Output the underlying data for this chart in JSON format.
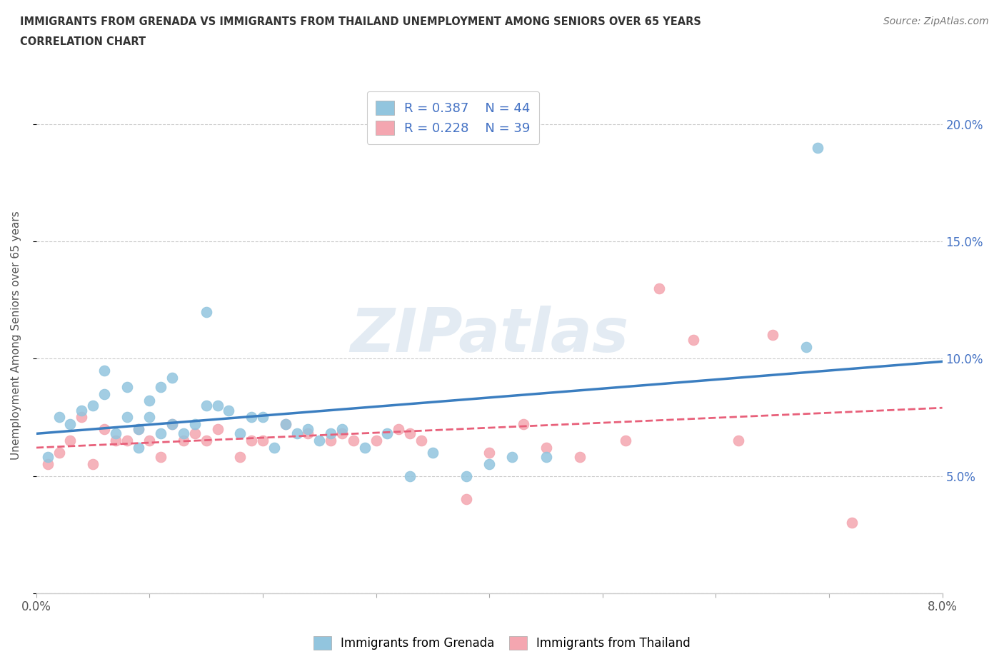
{
  "title_line1": "IMMIGRANTS FROM GRENADA VS IMMIGRANTS FROM THAILAND UNEMPLOYMENT AMONG SENIORS OVER 65 YEARS",
  "title_line2": "CORRELATION CHART",
  "source": "Source: ZipAtlas.com",
  "ylabel": "Unemployment Among Seniors over 65 years",
  "watermark": "ZIPatlas",
  "xlim": [
    0.0,
    0.08
  ],
  "ylim": [
    0.0,
    0.22
  ],
  "xticks": [
    0.0,
    0.01,
    0.02,
    0.03,
    0.04,
    0.05,
    0.06,
    0.07,
    0.08
  ],
  "xtick_labels": [
    "0.0%",
    "",
    "",
    "",
    "",
    "",
    "",
    "",
    "8.0%"
  ],
  "ytick_positions": [
    0.0,
    0.05,
    0.1,
    0.15,
    0.2
  ],
  "ytick_labels_right": [
    "",
    "5.0%",
    "10.0%",
    "15.0%",
    "20.0%"
  ],
  "grenada_R": 0.387,
  "grenada_N": 44,
  "thailand_R": 0.228,
  "thailand_N": 39,
  "grenada_color": "#92C5DE",
  "thailand_color": "#F4A6B0",
  "grenada_line_color": "#3B7EC0",
  "thailand_line_color": "#E8607A",
  "grenada_x": [
    0.001,
    0.002,
    0.003,
    0.004,
    0.005,
    0.006,
    0.006,
    0.007,
    0.008,
    0.008,
    0.009,
    0.009,
    0.01,
    0.01,
    0.011,
    0.011,
    0.012,
    0.012,
    0.013,
    0.014,
    0.015,
    0.015,
    0.016,
    0.017,
    0.018,
    0.019,
    0.02,
    0.021,
    0.022,
    0.023,
    0.024,
    0.025,
    0.026,
    0.027,
    0.029,
    0.031,
    0.033,
    0.035,
    0.038,
    0.04,
    0.042,
    0.045,
    0.068,
    0.069
  ],
  "grenada_y": [
    0.058,
    0.075,
    0.072,
    0.078,
    0.08,
    0.085,
    0.095,
    0.068,
    0.075,
    0.088,
    0.062,
    0.07,
    0.075,
    0.082,
    0.068,
    0.088,
    0.072,
    0.092,
    0.068,
    0.072,
    0.08,
    0.12,
    0.08,
    0.078,
    0.068,
    0.075,
    0.075,
    0.062,
    0.072,
    0.068,
    0.07,
    0.065,
    0.068,
    0.07,
    0.062,
    0.068,
    0.05,
    0.06,
    0.05,
    0.055,
    0.058,
    0.058,
    0.105,
    0.19
  ],
  "thailand_x": [
    0.001,
    0.002,
    0.003,
    0.004,
    0.005,
    0.006,
    0.007,
    0.008,
    0.009,
    0.01,
    0.011,
    0.012,
    0.013,
    0.014,
    0.015,
    0.016,
    0.018,
    0.019,
    0.02,
    0.022,
    0.024,
    0.026,
    0.027,
    0.028,
    0.03,
    0.032,
    0.033,
    0.034,
    0.038,
    0.04,
    0.043,
    0.045,
    0.048,
    0.052,
    0.055,
    0.058,
    0.062,
    0.065,
    0.072
  ],
  "thailand_y": [
    0.055,
    0.06,
    0.065,
    0.075,
    0.055,
    0.07,
    0.065,
    0.065,
    0.07,
    0.065,
    0.058,
    0.072,
    0.065,
    0.068,
    0.065,
    0.07,
    0.058,
    0.065,
    0.065,
    0.072,
    0.068,
    0.065,
    0.068,
    0.065,
    0.065,
    0.07,
    0.068,
    0.065,
    0.04,
    0.06,
    0.072,
    0.062,
    0.058,
    0.065,
    0.13,
    0.108,
    0.065,
    0.11,
    0.03
  ],
  "legend_label_grenada": "Immigrants from Grenada",
  "legend_label_thailand": "Immigrants from Thailand",
  "background_color": "#FFFFFF",
  "grid_color": "#CCCCCC"
}
